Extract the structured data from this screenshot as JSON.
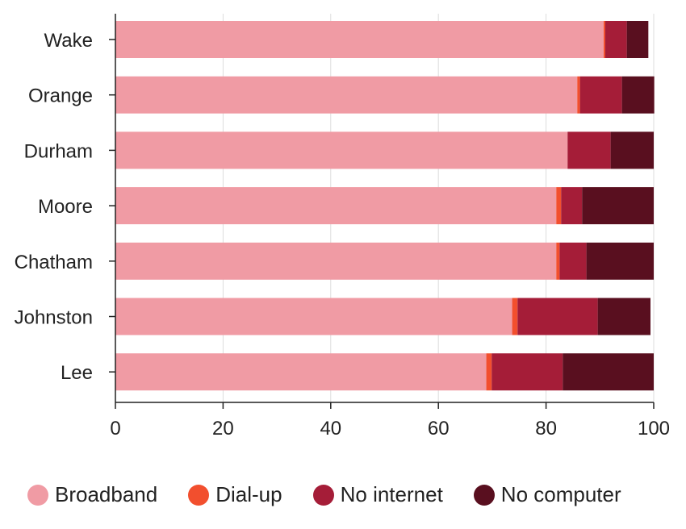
{
  "chart_data": {
    "type": "bar",
    "orientation": "horizontal",
    "stacked": true,
    "categories": [
      "Wake",
      "Orange",
      "Durham",
      "Moore",
      "Chatham",
      "Johnston",
      "Lee"
    ],
    "series": [
      {
        "name": "Broadband",
        "color": "#f09ba4",
        "values": [
          90.7,
          85.8,
          84.0,
          81.9,
          81.9,
          73.7,
          68.9
        ]
      },
      {
        "name": "Dial-up",
        "color": "#f24f2e",
        "values": [
          0.3,
          0.5,
          0.0,
          0.9,
          0.6,
          1.0,
          1.0
        ]
      },
      {
        "name": "No internet",
        "color": "#a51d38",
        "values": [
          4.0,
          7.8,
          8.0,
          3.9,
          5.0,
          14.9,
          13.2
        ]
      },
      {
        "name": "No computer",
        "color": "#590f1f",
        "values": [
          4.0,
          6.0,
          8.0,
          13.3,
          12.5,
          9.8,
          16.9
        ]
      }
    ],
    "xlim": [
      0,
      100
    ],
    "xticks": [
      "0",
      "20",
      "40",
      "60",
      "80",
      "100"
    ],
    "grid": "vertical",
    "legend_position": "bottom",
    "title": "",
    "xlabel": "",
    "ylabel": ""
  }
}
